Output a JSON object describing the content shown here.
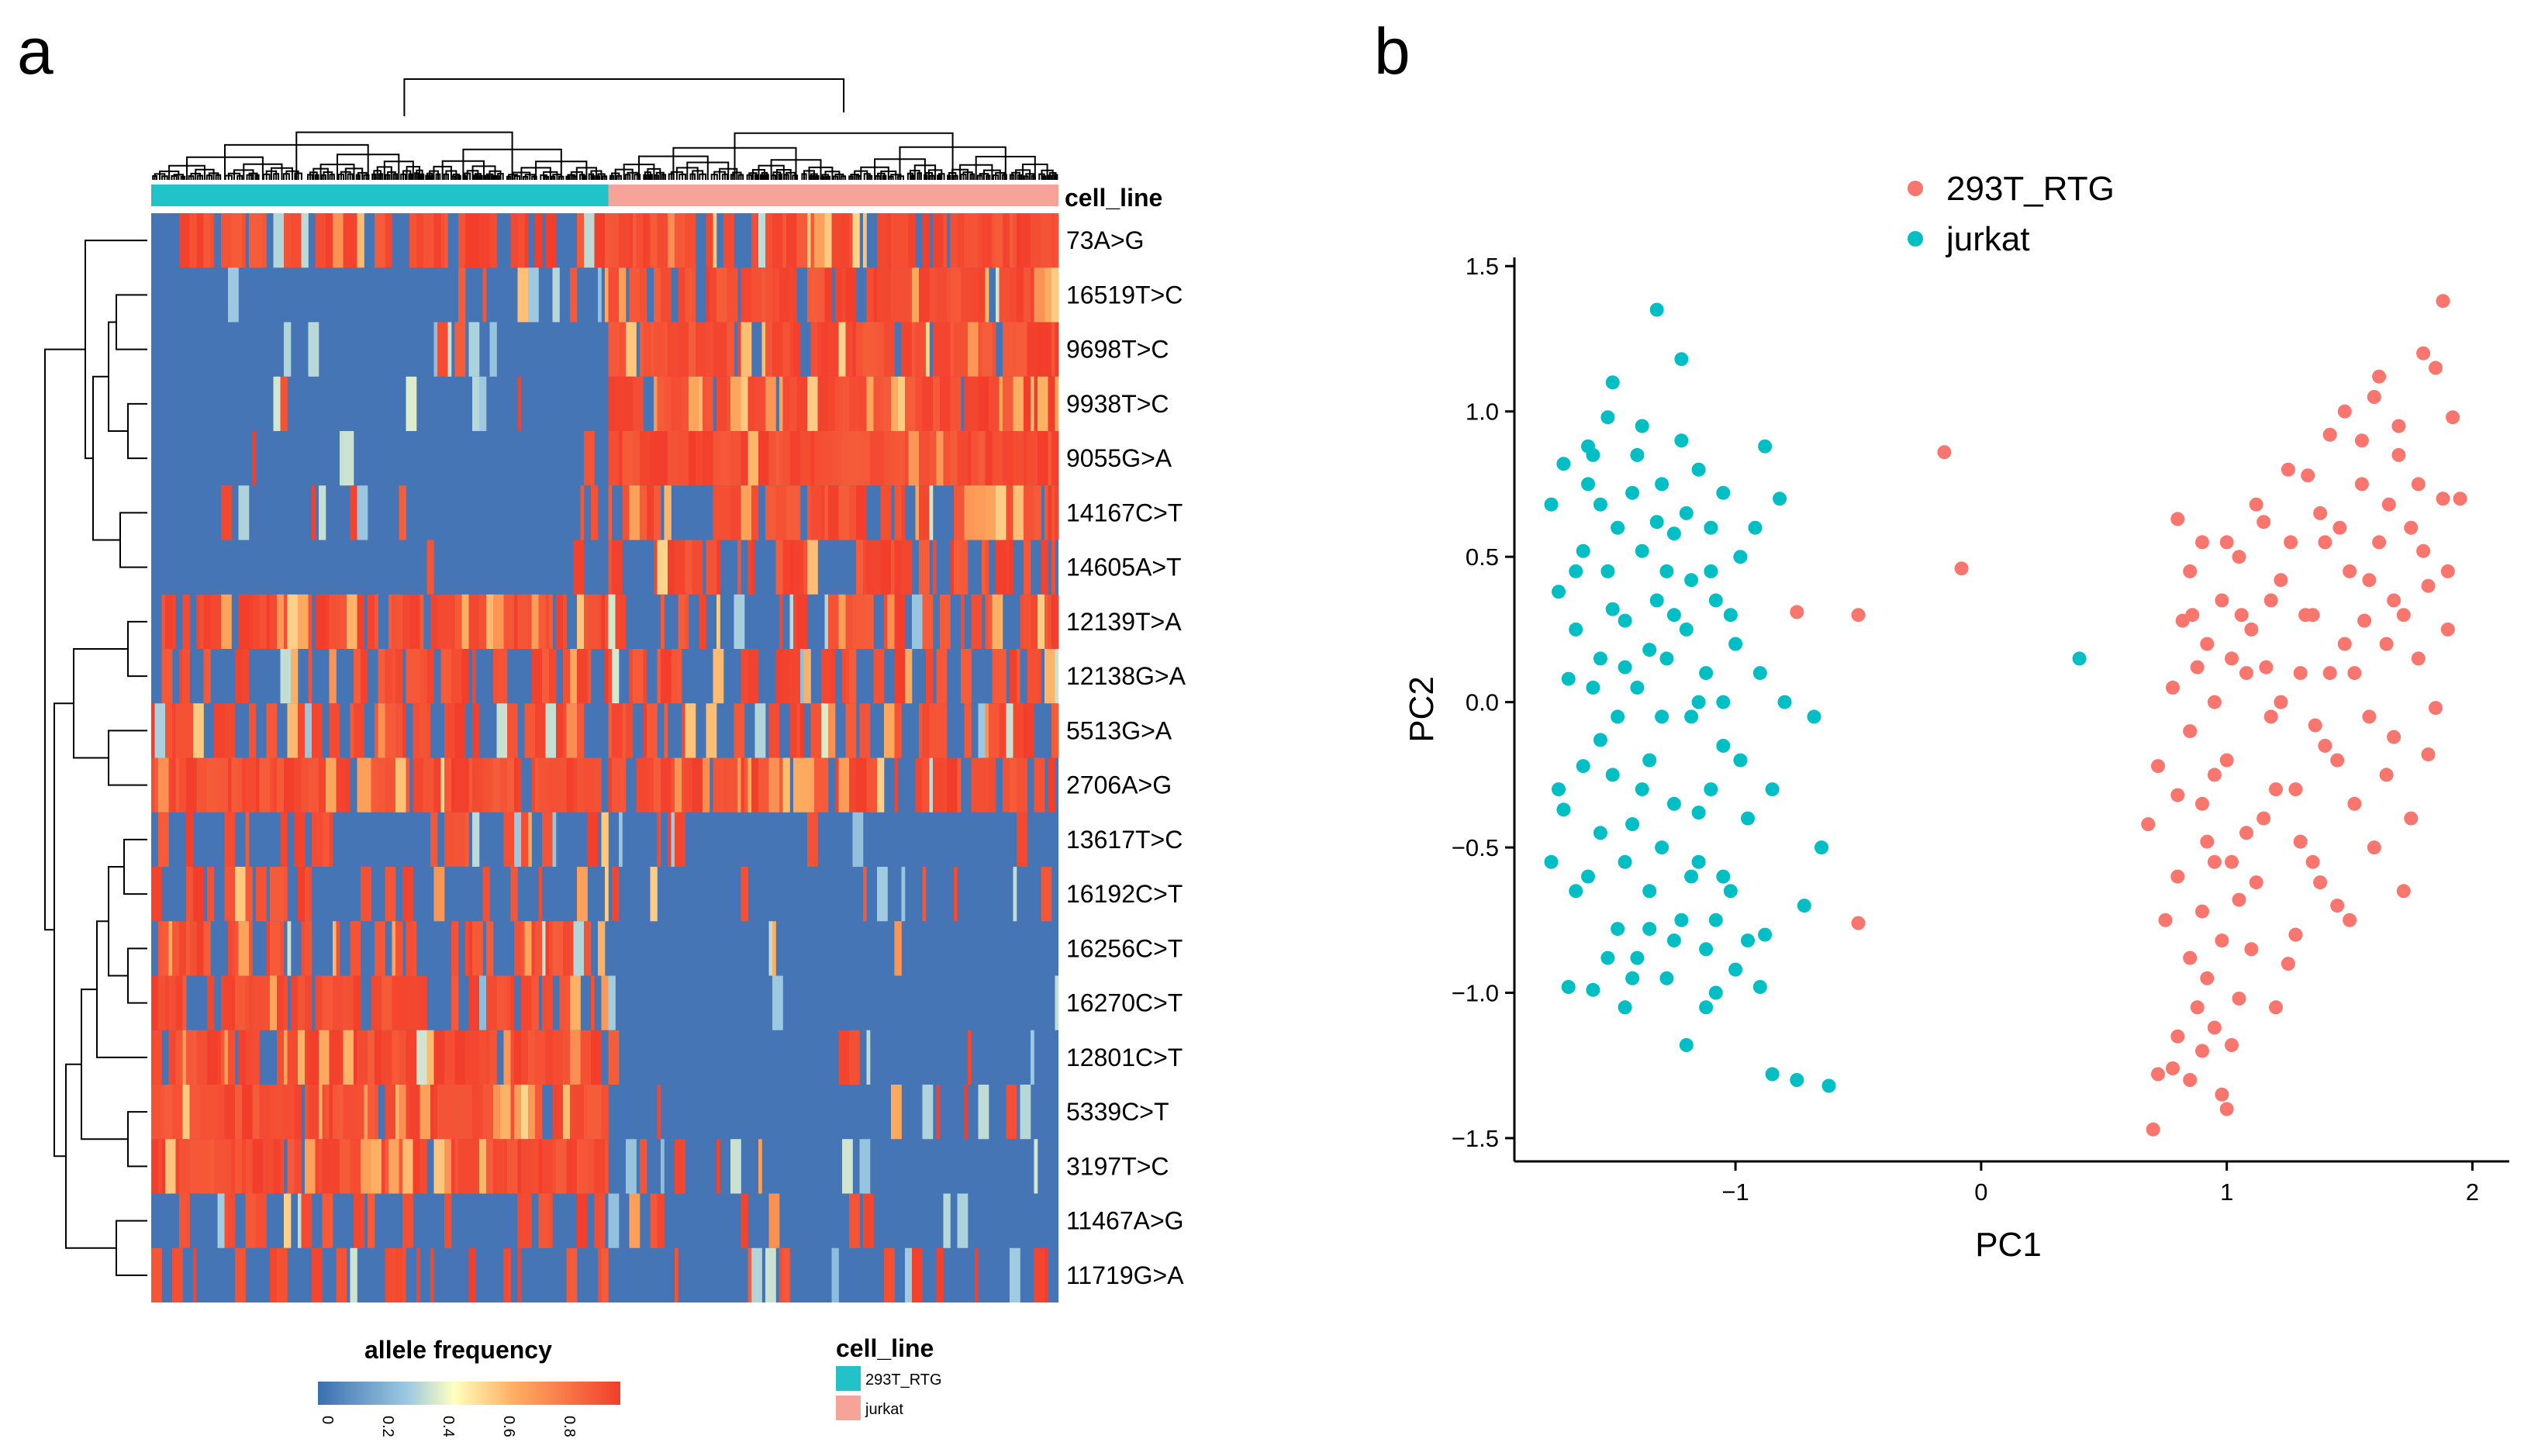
{
  "panels": {
    "a": "a",
    "b": "b"
  },
  "colors": {
    "blue": "#4575b4",
    "red": "#f23d2b",
    "teal": "#22c2c9",
    "salmon": "#f8746b",
    "pink": "#f6a39a",
    "scatter_red": "#f8766d",
    "scatter_teal": "#00bfc4"
  },
  "chart_data": [
    {
      "type": "heatmap",
      "title": "",
      "annotation_title": "cell_line",
      "rows": [
        "73A>G",
        "16519T>C",
        "9698T>C",
        "9938T>C",
        "9055G>A",
        "14167C>T",
        "14605A>T",
        "12139T>A",
        "12138G>A",
        "5513G>A",
        "2706A>G",
        "13617T>C",
        "16192C>T",
        "16256C>T",
        "16270C>T",
        "12801C>T",
        "5339C>T",
        "3197T>C",
        "11467A>G",
        "11719G>A"
      ],
      "column_groups": [
        {
          "name": "293T_RTG",
          "fraction": 0.503
        },
        {
          "name": "jurkat",
          "fraction": 0.497
        }
      ],
      "row_pattern_293T_jurkat": [
        [
          0.6,
          0.85
        ],
        [
          0.05,
          0.85
        ],
        [
          0.05,
          0.9
        ],
        [
          0.05,
          0.95
        ],
        [
          0.02,
          0.98
        ],
        [
          0.05,
          0.6
        ],
        [
          0.05,
          0.65
        ],
        [
          0.85,
          0.55
        ],
        [
          0.6,
          0.5
        ],
        [
          0.6,
          0.55
        ],
        [
          0.9,
          0.75
        ],
        [
          0.3,
          0.05
        ],
        [
          0.4,
          0.05
        ],
        [
          0.55,
          0.05
        ],
        [
          0.7,
          0.05
        ],
        [
          0.85,
          0.05
        ],
        [
          0.97,
          0.05
        ],
        [
          0.97,
          0.05
        ],
        [
          0.25,
          0.15
        ],
        [
          0.35,
          0.1
        ]
      ],
      "legend": {
        "title": "allele frequency",
        "range": [
          0,
          1
        ],
        "ticks": [
          "0",
          "0.2",
          "0.4",
          "0.6",
          "0.8"
        ]
      },
      "group_legend": {
        "title": "cell_line",
        "items": [
          "293T_RTG",
          "jurkat"
        ]
      }
    },
    {
      "type": "scatter",
      "xlabel": "PC1",
      "ylabel": "PC2",
      "xlim": [
        -1.9,
        2.15
      ],
      "ylim": [
        -1.58,
        1.53
      ],
      "xticks": [
        -1,
        0,
        1,
        2
      ],
      "xtick_labels": [
        "−1",
        "0",
        "1",
        "2"
      ],
      "yticks": [
        -1.5,
        -1.0,
        -0.5,
        0.0,
        0.5,
        1.0,
        1.5
      ],
      "ytick_labels": [
        "−1.5",
        "−1.0",
        "−0.5",
        "0.0",
        "0.5",
        "1.0",
        "1.5"
      ],
      "legend_position": "top",
      "series": [
        {
          "name": "293T_RTG",
          "points": [
            [
              -0.15,
              0.86
            ],
            [
              -0.08,
              0.46
            ],
            [
              -0.75,
              0.31
            ],
            [
              -0.5,
              0.3
            ],
            [
              -0.5,
              -0.76
            ],
            [
              0.7,
              -1.47
            ],
            [
              0.72,
              -1.28
            ],
            [
              0.78,
              -1.26
            ],
            [
              0.8,
              -1.15
            ],
            [
              0.85,
              -1.3
            ],
            [
              0.88,
              -1.05
            ],
            [
              0.9,
              -1.2
            ],
            [
              0.92,
              -0.95
            ],
            [
              0.95,
              -1.12
            ],
            [
              0.98,
              -1.35
            ],
            [
              1.0,
              -1.4
            ],
            [
              1.02,
              -1.18
            ],
            [
              1.05,
              -1.02
            ],
            [
              0.75,
              -0.75
            ],
            [
              0.8,
              -0.6
            ],
            [
              0.85,
              -0.88
            ],
            [
              0.9,
              -0.72
            ],
            [
              0.95,
              -0.55
            ],
            [
              0.98,
              -0.82
            ],
            [
              0.68,
              -0.42
            ],
            [
              0.72,
              -0.22
            ],
            [
              0.8,
              -0.32
            ],
            [
              0.85,
              -0.1
            ],
            [
              0.9,
              -0.35
            ],
            [
              0.78,
              0.05
            ],
            [
              0.82,
              0.28
            ],
            [
              0.85,
              0.45
            ],
            [
              0.8,
              0.63
            ],
            [
              0.9,
              0.55
            ],
            [
              0.92,
              0.2
            ],
            [
              0.95,
              0.0
            ],
            [
              0.98,
              0.35
            ],
            [
              1.0,
              -0.2
            ],
            [
              1.02,
              0.15
            ],
            [
              1.05,
              0.5
            ],
            [
              1.08,
              -0.45
            ],
            [
              1.1,
              0.25
            ],
            [
              1.12,
              -0.62
            ],
            [
              1.15,
              0.62
            ],
            [
              1.18,
              -0.05
            ],
            [
              1.2,
              -0.3
            ],
            [
              1.22,
              0.42
            ],
            [
              1.25,
              0.8
            ],
            [
              1.28,
              -0.8
            ],
            [
              1.3,
              0.1
            ],
            [
              1.32,
              0.3
            ],
            [
              1.35,
              -0.55
            ],
            [
              1.38,
              0.65
            ],
            [
              1.4,
              -0.15
            ],
            [
              1.42,
              0.92
            ],
            [
              1.45,
              -0.7
            ],
            [
              1.48,
              0.2
            ],
            [
              1.5,
              0.45
            ],
            [
              1.52,
              -0.35
            ],
            [
              1.55,
              0.75
            ],
            [
              1.58,
              -0.05
            ],
            [
              1.6,
              1.05
            ],
            [
              1.62,
              0.55
            ],
            [
              1.65,
              -0.25
            ],
            [
              1.68,
              0.35
            ],
            [
              1.7,
              0.85
            ],
            [
              1.72,
              -0.65
            ],
            [
              1.75,
              0.6
            ],
            [
              1.78,
              0.15
            ],
            [
              1.8,
              1.2
            ],
            [
              1.82,
              0.4
            ],
            [
              1.85,
              -0.02
            ],
            [
              1.88,
              0.7
            ],
            [
              1.9,
              0.25
            ],
            [
              1.92,
              0.98
            ],
            [
              1.95,
              0.7
            ],
            [
              1.88,
              1.38
            ],
            [
              1.85,
              1.15
            ],
            [
              1.78,
              0.75
            ],
            [
              1.7,
              0.95
            ],
            [
              1.62,
              1.12
            ],
            [
              1.55,
              0.9
            ],
            [
              1.48,
              1.0
            ],
            [
              1.4,
              0.55
            ],
            [
              1.35,
              0.3
            ],
            [
              1.25,
              -0.9
            ],
            [
              1.2,
              -1.05
            ],
            [
              1.1,
              -0.85
            ],
            [
              1.05,
              -0.68
            ],
            [
              1.15,
              -0.4
            ],
            [
              1.3,
              -0.48
            ],
            [
              1.45,
              -0.2
            ],
            [
              1.6,
              -0.5
            ],
            [
              1.75,
              -0.4
            ],
            [
              1.68,
              -0.12
            ],
            [
              1.52,
              0.1
            ],
            [
              1.38,
              -0.62
            ],
            [
              1.28,
              -0.3
            ],
            [
              1.18,
              0.35
            ],
            [
              1.08,
              0.1
            ],
            [
              1.0,
              0.55
            ],
            [
              0.95,
              -0.25
            ],
            [
              0.88,
              0.12
            ],
            [
              1.65,
              0.2
            ],
            [
              1.58,
              0.42
            ],
            [
              1.72,
              0.3
            ],
            [
              1.82,
              -0.18
            ],
            [
              1.9,
              0.45
            ],
            [
              1.5,
              -0.75
            ],
            [
              1.42,
              0.1
            ],
            [
              1.33,
              0.78
            ],
            [
              1.22,
              0.0
            ],
            [
              1.12,
              0.68
            ],
            [
              1.02,
              -0.55
            ],
            [
              0.92,
              -0.48
            ],
            [
              0.86,
              0.3
            ],
            [
              1.8,
              0.52
            ],
            [
              1.66,
              0.68
            ],
            [
              1.56,
              0.28
            ],
            [
              1.46,
              0.6
            ],
            [
              1.36,
              -0.08
            ],
            [
              1.26,
              0.55
            ],
            [
              1.16,
              0.12
            ],
            [
              1.06,
              0.3
            ]
          ]
        },
        {
          "name": "jurkat",
          "points": [
            [
              0.4,
              0.15
            ],
            [
              -1.75,
              0.68
            ],
            [
              -1.72,
              0.38
            ],
            [
              -1.7,
              -0.37
            ],
            [
              -1.75,
              -0.55
            ],
            [
              -1.72,
              -0.3
            ],
            [
              -1.68,
              -0.98
            ],
            [
              -1.68,
              0.08
            ],
            [
              -1.65,
              0.25
            ],
            [
              -1.62,
              0.52
            ],
            [
              -1.6,
              0.88
            ],
            [
              -1.58,
              0.85
            ],
            [
              -1.6,
              -0.6
            ],
            [
              -1.58,
              -0.99
            ],
            [
              -1.55,
              0.15
            ],
            [
              -1.55,
              -0.13
            ],
            [
              -1.52,
              0.45
            ],
            [
              -1.52,
              0.98
            ],
            [
              -1.5,
              1.1
            ],
            [
              -1.5,
              -0.25
            ],
            [
              -1.48,
              0.6
            ],
            [
              -1.48,
              -0.78
            ],
            [
              -1.45,
              0.28
            ],
            [
              -1.45,
              -1.05
            ],
            [
              -1.42,
              0.72
            ],
            [
              -1.42,
              -0.42
            ],
            [
              -1.4,
              0.05
            ],
            [
              -1.4,
              -0.88
            ],
            [
              -1.38,
              0.52
            ],
            [
              -1.38,
              0.95
            ],
            [
              -1.35,
              -0.2
            ],
            [
              -1.35,
              -0.65
            ],
            [
              -1.32,
              0.35
            ],
            [
              -1.32,
              1.35
            ],
            [
              -1.3,
              -0.5
            ],
            [
              -1.3,
              0.75
            ],
            [
              -1.28,
              0.15
            ],
            [
              -1.28,
              -0.95
            ],
            [
              -1.25,
              0.58
            ],
            [
              -1.25,
              -0.35
            ],
            [
              -1.22,
              1.18
            ],
            [
              -1.22,
              -0.75
            ],
            [
              -1.2,
              0.25
            ],
            [
              -1.2,
              -1.18
            ],
            [
              -1.18,
              0.42
            ],
            [
              -1.18,
              -0.05
            ],
            [
              -1.15,
              0.8
            ],
            [
              -1.15,
              -0.55
            ],
            [
              -1.12,
              0.1
            ],
            [
              -1.12,
              -0.85
            ],
            [
              -1.1,
              0.6
            ],
            [
              -1.1,
              -0.3
            ],
            [
              -1.08,
              0.35
            ],
            [
              -1.08,
              -1.0
            ],
            [
              -1.05,
              0.72
            ],
            [
              -1.05,
              -0.15
            ],
            [
              -1.02,
              -0.65
            ],
            [
              -1.0,
              0.2
            ],
            [
              -1.0,
              -0.92
            ],
            [
              -0.98,
              0.5
            ],
            [
              -0.95,
              -0.4
            ],
            [
              -0.95,
              -0.82
            ],
            [
              -0.92,
              0.6
            ],
            [
              -0.9,
              0.1
            ],
            [
              -0.9,
              -0.98
            ],
            [
              -0.88,
              0.88
            ],
            [
              -0.85,
              -0.3
            ],
            [
              -0.85,
              -1.28
            ],
            [
              -0.82,
              0.7
            ],
            [
              -0.8,
              0.0
            ],
            [
              -0.75,
              -1.3
            ],
            [
              -0.72,
              -0.7
            ],
            [
              -0.68,
              -0.05
            ],
            [
              -0.65,
              -0.5
            ],
            [
              -0.62,
              -1.32
            ],
            [
              -0.88,
              -0.8
            ],
            [
              -1.6,
              0.75
            ],
            [
              -1.65,
              -0.65
            ],
            [
              -1.7,
              0.82
            ],
            [
              -1.62,
              -0.22
            ],
            [
              -1.55,
              -0.45
            ],
            [
              -1.5,
              0.32
            ],
            [
              -1.45,
              -0.55
            ],
            [
              -1.4,
              0.85
            ],
            [
              -1.35,
              0.18
            ],
            [
              -1.3,
              -0.05
            ],
            [
              -1.25,
              -0.82
            ],
            [
              -1.2,
              0.65
            ],
            [
              -1.15,
              -0.38
            ],
            [
              -1.1,
              0.45
            ],
            [
              -1.05,
              -0.6
            ],
            [
              -1.02,
              0.3
            ],
            [
              -0.98,
              -0.2
            ],
            [
              -1.58,
              0.05
            ],
            [
              -1.48,
              -0.05
            ],
            [
              -1.38,
              -0.3
            ],
            [
              -1.28,
              0.45
            ],
            [
              -1.18,
              -0.6
            ],
            [
              -1.08,
              -0.75
            ],
            [
              -1.52,
              -0.88
            ],
            [
              -1.42,
              -0.95
            ],
            [
              -1.32,
              0.62
            ],
            [
              -1.22,
              0.9
            ],
            [
              -1.12,
              -1.05
            ],
            [
              -1.65,
              0.45
            ],
            [
              -1.55,
              0.68
            ],
            [
              -1.45,
              0.12
            ],
            [
              -1.35,
              -0.78
            ],
            [
              -1.25,
              0.3
            ],
            [
              -1.15,
              0.0
            ],
            [
              -1.05,
              0.0
            ]
          ]
        }
      ]
    }
  ]
}
